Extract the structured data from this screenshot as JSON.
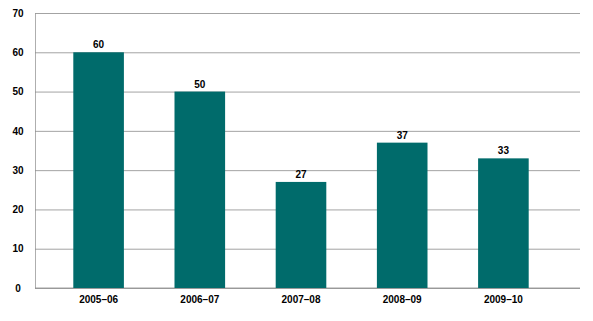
{
  "chart_data": {
    "type": "bar",
    "categories": [
      "2005–06",
      "2006–07",
      "2007–08",
      "2008–09",
      "2009–10"
    ],
    "values": [
      60,
      50,
      27,
      37,
      33
    ],
    "color": "#006b6b",
    "ylim": [
      0,
      70
    ],
    "yticks": [
      0,
      10,
      20,
      30,
      40,
      50,
      60,
      70
    ],
    "grid": true,
    "data_labels": true
  }
}
